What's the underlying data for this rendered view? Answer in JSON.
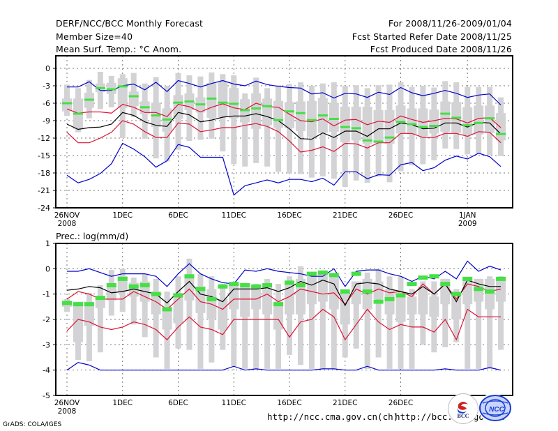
{
  "header": {
    "title": "DERF/NCC/BCC Monthly Forecast",
    "member_size": "Member Size=40",
    "variable_top": "Mean Surf. Temp.: °C Anom.",
    "period": "For 2008/11/26-2009/01/04",
    "started": "Fcst Started Refer Date 2008/11/25",
    "produced": "Fcst Produced Date 2008/11/26"
  },
  "footer": {
    "url_ncc": "http://ncc.cma.gov.cn(ch)",
    "url_bcc": "http://bcc.cma.gov.cn",
    "grads": "GrADS: COLA/IGES",
    "logo_bcc": "BCC",
    "logo_ncc": "NCC"
  },
  "colors": {
    "box": "#d3d3d6",
    "median": "#44e044",
    "mean": "#000000",
    "std": "#dd1133",
    "extreme": "#0000cc"
  },
  "chart_data": [
    {
      "type": "box-line",
      "title": "Mean Surf. Temp.: °C Anom.",
      "ylim": [
        -24,
        0
      ],
      "yticks": [
        0,
        -3,
        -6,
        -9,
        -12,
        -15,
        -18,
        -21,
        -24
      ],
      "ytick_labels": [
        "0",
        "-3",
        "-6",
        "-9",
        "-12",
        "-15",
        "-18",
        "-21",
        "-24"
      ],
      "xticks": [
        {
          "day": 0,
          "label": "26NOV",
          "sub": "2008"
        },
        {
          "day": 5,
          "label": "1DEC",
          "sub": ""
        },
        {
          "day": 10,
          "label": "6DEC",
          "sub": ""
        },
        {
          "day": 15,
          "label": "11DEC",
          "sub": ""
        },
        {
          "day": 20,
          "label": "16DEC",
          "sub": ""
        },
        {
          "day": 25,
          "label": "21DEC",
          "sub": ""
        },
        {
          "day": 30,
          "label": "26DEC",
          "sub": ""
        },
        {
          "day": 36,
          "label": "1JAN",
          "sub": "2009"
        }
      ],
      "grid": true,
      "days": 40,
      "series": {
        "max": [
          -3.2,
          -3.2,
          -2.3,
          -3.8,
          -3.8,
          -3.0,
          -2.7,
          -3.7,
          -2.4,
          -4.0,
          -2.1,
          -2.6,
          -3.2,
          -2.6,
          -2.1,
          -2.7,
          -3.0,
          -2.2,
          -2.8,
          -3.1,
          -3.3,
          -3.4,
          -4.4,
          -4.2,
          -5.1,
          -4.3,
          -4.4,
          -5.0,
          -4.1,
          -4.5,
          -3.3,
          -4.2,
          -4.7,
          -4.3,
          -3.8,
          -4.3,
          -5.0,
          -4.6,
          -4.4,
          -6.3
        ],
        "std_hi": [
          -7.0,
          -7.7,
          -7.5,
          -7.5,
          -7.7,
          -6.2,
          -6.7,
          -7.6,
          -7.6,
          -8.3,
          -6.2,
          -6.6,
          -7.5,
          -6.7,
          -6.1,
          -6.8,
          -7.1,
          -6.0,
          -6.6,
          -6.7,
          -7.9,
          -9.0,
          -9.2,
          -8.7,
          -9.9,
          -8.9,
          -8.8,
          -9.7,
          -9.1,
          -9.3,
          -8.2,
          -8.8,
          -9.3,
          -9.0,
          -8.6,
          -8.7,
          -9.4,
          -8.6,
          -8.5,
          -10.2
        ],
        "mean": [
          -9.6,
          -10.5,
          -10.2,
          -10.1,
          -9.6,
          -7.6,
          -8.1,
          -9.2,
          -9.8,
          -10.0,
          -7.6,
          -8.0,
          -9.2,
          -8.9,
          -8.4,
          -8.2,
          -8.2,
          -7.8,
          -8.3,
          -9.0,
          -10.4,
          -12.1,
          -12.2,
          -11.1,
          -11.9,
          -10.8,
          -10.8,
          -11.7,
          -10.4,
          -10.4,
          -9.4,
          -9.7,
          -10.4,
          -10.3,
          -9.4,
          -9.4,
          -10.1,
          -9.3,
          -9.4,
          -11.3
        ],
        "std_lo": [
          -11.0,
          -12.8,
          -12.8,
          -12.0,
          -11.0,
          -9.0,
          -9.6,
          -10.9,
          -11.9,
          -11.9,
          -9.4,
          -9.6,
          -10.9,
          -10.6,
          -10.2,
          -10.2,
          -9.8,
          -9.5,
          -10.0,
          -10.9,
          -12.5,
          -14.4,
          -14.1,
          -13.5,
          -14.3,
          -12.9,
          -13.0,
          -13.7,
          -12.8,
          -12.8,
          -11.2,
          -11.2,
          -11.9,
          -11.9,
          -11.2,
          -11.2,
          -11.7,
          -10.9,
          -11.0,
          -12.8
        ],
        "min": [
          -18.4,
          -19.7,
          -19.1,
          -18.1,
          -16.4,
          -12.9,
          -13.9,
          -15.2,
          -17.0,
          -15.9,
          -13.1,
          -13.6,
          -15.3,
          -15.3,
          -15.3,
          -21.8,
          -20.2,
          -19.7,
          -19.2,
          -19.7,
          -19.1,
          -19.1,
          -19.5,
          -18.9,
          -20.1,
          -17.8,
          -17.8,
          -19.0,
          -18.3,
          -18.4,
          -16.6,
          -16.2,
          -17.6,
          -17.1,
          -15.8,
          -15.1,
          -15.6,
          -14.6,
          -15.2,
          -16.9
        ],
        "box_top": [
          -2.8,
          -3.4,
          -2.0,
          -0.6,
          -1.3,
          -1.0,
          -0.8,
          -2.6,
          -1.5,
          -3.0,
          -0.8,
          -1.2,
          -1.4,
          -0.7,
          -1.0,
          -1.2,
          -4.3,
          -1.6,
          -3.4,
          -2.9,
          -2.7,
          -2.4,
          -3.0,
          -2.6,
          -2.4,
          -3.0,
          -2.9,
          -3.4,
          -2.9,
          -2.8,
          -2.4,
          -3.2,
          -3.0,
          -3.3,
          -2.2,
          -2.4,
          -3.2,
          -3.2,
          -3.2,
          -5.0
        ],
        "q3": [
          -5.2,
          -5.2,
          -4.2,
          -2.6,
          -2.5,
          -1.7,
          -4.0,
          -5.7,
          -5.9,
          -6.9,
          -4.6,
          -4.3,
          -5.0,
          -2.5,
          -2.4,
          -3.4,
          -5.3,
          -4.3,
          -5.2,
          -5.6,
          -5.8,
          -5.7,
          -5.6,
          -5.1,
          -5.9,
          -6.6,
          -6.6,
          -6.6,
          -7.2,
          -7.2,
          -6.4,
          -6.9,
          -6.9,
          -7.1,
          -5.7,
          -5.8,
          -6.7,
          -6.4,
          -6.4,
          -7.7
        ],
        "median": [
          -6.0,
          -7.8,
          -5.4,
          -3.4,
          -3.6,
          -3.1,
          -4.8,
          -6.7,
          -8.1,
          -8.8,
          -5.9,
          -5.7,
          -6.2,
          -5.2,
          -5.9,
          -6.1,
          -7.2,
          -6.9,
          -6.5,
          -8.9,
          -7.4,
          -7.7,
          -8.9,
          -8.1,
          -8.7,
          -10.1,
          -10.3,
          -12.4,
          -12.6,
          -11.9,
          -9.2,
          -9.6,
          -10.1,
          -9.9,
          -7.8,
          -8.5,
          -9.8,
          -9.4,
          -8.6,
          -11.3
        ],
        "q1": [
          -7.4,
          -10.4,
          -6.8,
          -4.1,
          -4.4,
          -6.8,
          -6.5,
          -7.9,
          -10.1,
          -10.9,
          -8.7,
          -7.2,
          -7.6,
          -8.5,
          -8.4,
          -8.6,
          -9.3,
          -10.4,
          -9.8,
          -10.2,
          -10.3,
          -10.8,
          -11.8,
          -11.1,
          -10.9,
          -12.7,
          -12.4,
          -13.0,
          -12.9,
          -13.0,
          -11.2,
          -11.4,
          -11.7,
          -11.2,
          -10.9,
          -11.1,
          -11.5,
          -11.4,
          -11.1,
          -12.4
        ],
        "box_bot": [
          -8.2,
          -11.0,
          -8.6,
          -7.0,
          -6.7,
          -12.0,
          -8.4,
          -12.1,
          -15.5,
          -16.0,
          -14.0,
          -12.5,
          -12.3,
          -12.1,
          -14.3,
          -16.5,
          -16.9,
          -16.3,
          -16.9,
          -17.8,
          -18.1,
          -18.2,
          -18.8,
          -18.6,
          -19.0,
          -20.4,
          -19.3,
          -19.7,
          -18.6,
          -19.6,
          -17.7,
          -16.7,
          -16.5,
          -15.8,
          -13.8,
          -13.9,
          -14.8,
          -14.6,
          -14.9,
          -15.1
        ]
      }
    },
    {
      "type": "box-line",
      "title": "Prec.: log(mm/d)",
      "ylim": [
        -5,
        1
      ],
      "yticks": [
        1,
        0,
        -1,
        -2,
        -3,
        -4,
        -5
      ],
      "ytick_labels": [
        "1",
        "0",
        "-1",
        "-2",
        "-3",
        "-4",
        "-5"
      ],
      "xticks": [
        {
          "day": 0,
          "label": "26NOV",
          "sub": "2008"
        },
        {
          "day": 5,
          "label": "1DEC",
          "sub": ""
        },
        {
          "day": 10,
          "label": "6DEC",
          "sub": ""
        },
        {
          "day": 15,
          "label": "11DEC",
          "sub": ""
        },
        {
          "day": 20,
          "label": "16DEC",
          "sub": ""
        },
        {
          "day": 25,
          "label": "21DEC",
          "sub": ""
        },
        {
          "day": 30,
          "label": "26DEC",
          "sub": ""
        }
      ],
      "grid": true,
      "days": 40,
      "series": {
        "max": [
          -0.1,
          -0.1,
          0.0,
          -0.15,
          -0.3,
          -0.2,
          -0.2,
          -0.2,
          -0.3,
          -0.7,
          -0.2,
          0.2,
          -0.2,
          -0.4,
          -0.55,
          -0.6,
          -0.05,
          -0.1,
          0.0,
          -0.1,
          -0.15,
          -0.2,
          -0.3,
          -0.3,
          0.0,
          -0.7,
          -0.1,
          -0.05,
          -0.05,
          -0.2,
          -0.3,
          -0.5,
          -0.3,
          -0.4,
          -0.1,
          -0.4,
          0.3,
          -0.1,
          0.1,
          -0.05
        ],
        "std_hi": [
          -1.2,
          -0.9,
          -1.0,
          -1.2,
          -1.2,
          -1.2,
          -0.9,
          -1.1,
          -1.3,
          -1.6,
          -1.2,
          -0.8,
          -1.3,
          -1.4,
          -1.6,
          -1.2,
          -1.2,
          -1.2,
          -1.0,
          -1.3,
          -1.1,
          -0.8,
          -0.9,
          -1.0,
          -0.95,
          -1.4,
          -0.8,
          -1.0,
          -0.8,
          -0.95,
          -0.9,
          -1.1,
          -0.6,
          -1.0,
          -0.6,
          -1.2,
          -0.6,
          -0.7,
          -0.9,
          -0.8
        ],
        "mean": [
          -0.85,
          -0.8,
          -0.7,
          -0.75,
          -0.95,
          -0.9,
          -0.8,
          -0.9,
          -1.0,
          -1.35,
          -0.9,
          -0.5,
          -1.0,
          -1.1,
          -1.3,
          -0.8,
          -0.8,
          -0.8,
          -0.75,
          -0.9,
          -0.75,
          -0.5,
          -0.65,
          -0.45,
          -0.6,
          -1.45,
          -0.6,
          -0.55,
          -0.6,
          -0.8,
          -0.9,
          -1.0,
          -0.7,
          -1.0,
          -0.6,
          -1.3,
          -0.45,
          -0.6,
          -0.7,
          -0.7
        ],
        "std_hi2": [],
        "std_lo": [
          -2.45,
          -2.0,
          -2.1,
          -2.3,
          -2.4,
          -2.3,
          -2.1,
          -2.2,
          -2.4,
          -2.8,
          -2.3,
          -1.9,
          -2.3,
          -2.4,
          -2.6,
          -2.0,
          -2.0,
          -2.0,
          -2.0,
          -2.0,
          -2.7,
          -2.1,
          -2.0,
          -1.6,
          -1.9,
          -2.8,
          -2.2,
          -1.6,
          -2.1,
          -2.4,
          -2.2,
          -2.3,
          -2.3,
          -2.5,
          -2.0,
          -2.8,
          -1.6,
          -1.9,
          -1.9,
          -1.9
        ],
        "min": [
          -4.0,
          -3.7,
          -3.8,
          -4.0,
          -4.0,
          -4.0,
          -4.0,
          -4.0,
          -4.0,
          -4.0,
          -4.0,
          -4.0,
          -4.0,
          -4.0,
          -4.0,
          -3.85,
          -4.0,
          -3.95,
          -4.0,
          -4.0,
          -4.0,
          -4.0,
          -4.0,
          -3.95,
          -3.95,
          -4.0,
          -4.0,
          -3.85,
          -4.0,
          -4.0,
          -4.0,
          -4.0,
          -4.0,
          -4.0,
          -3.95,
          -4.0,
          -4.0,
          -4.0,
          -3.9,
          -4.0
        ],
        "box_top": [
          -1.2,
          -1.4,
          -0.95,
          -0.65,
          -0.05,
          0.0,
          -0.35,
          -0.2,
          -0.4,
          -0.9,
          -0.3,
          0.4,
          -0.2,
          -0.3,
          -0.6,
          -0.9,
          -0.6,
          -0.6,
          -0.4,
          -0.6,
          -0.3,
          0.1,
          -0.3,
          -0.1,
          -0.4,
          -0.8,
          -0.6,
          -0.15,
          0.0,
          -0.3,
          -0.3,
          -0.8,
          -0.5,
          -0.5,
          -0.4,
          -0.8,
          -0.4,
          -0.4,
          -0.3,
          -0.3
        ],
        "q3": [
          -1.3,
          -1.3,
          -1.3,
          -1.1,
          -0.6,
          -0.3,
          -0.55,
          -0.5,
          -0.9,
          -1.5,
          -1.0,
          -0.3,
          -0.7,
          -0.8,
          -1.2,
          -0.6,
          -0.7,
          -0.7,
          -0.7,
          -1.3,
          -0.6,
          -0.4,
          -0.3,
          -0.2,
          -0.3,
          -1.0,
          -0.5,
          -0.4,
          -0.5,
          -0.8,
          -1.0,
          -1.1,
          -0.7,
          -1.1,
          -0.4,
          -0.9,
          -0.4,
          -0.4,
          -0.4,
          -0.4
        ],
        "median": [
          -1.35,
          -1.4,
          -1.4,
          -1.15,
          -0.65,
          -0.4,
          -0.7,
          -0.65,
          -1.0,
          -1.6,
          -1.05,
          -0.3,
          -0.8,
          -1.2,
          -0.7,
          -0.6,
          -0.65,
          -0.7,
          -0.65,
          -1.4,
          -0.55,
          -0.65,
          -0.2,
          -0.15,
          -0.25,
          -0.9,
          -0.2,
          -0.9,
          -1.3,
          -1.2,
          -1.05,
          -0.6,
          -0.35,
          -0.3,
          -0.6,
          -1.0,
          -0.4,
          -0.8,
          -0.9,
          -0.4
        ],
        "q1": [
          -1.5,
          -2.9,
          -2.25,
          -1.55,
          -1.25,
          -0.9,
          -1.1,
          -1.3,
          -1.8,
          -2.4,
          -2.15,
          -1.25,
          -1.75,
          -2.0,
          -2.4,
          -1.6,
          -1.9,
          -1.6,
          -1.8,
          -2.4,
          -1.8,
          -1.8,
          -1.4,
          -1.3,
          -1.6,
          -2.2,
          -1.4,
          -1.6,
          -1.2,
          -1.8,
          -2.1,
          -1.8,
          -1.8,
          -1.9,
          -1.4,
          -2.0,
          -1.4,
          -1.3,
          -1.6,
          -1.3
        ],
        "box_bot": [
          -1.7,
          -3.6,
          -3.65,
          -3.3,
          -1.85,
          -1.7,
          -2.2,
          -2.7,
          -3.5,
          -3.95,
          -3.15,
          -3.2,
          -3.95,
          -3.7,
          -3.2,
          -3.85,
          -3.95,
          -3.95,
          -3.95,
          -3.95,
          -3.4,
          -3.8,
          -3.95,
          -3.95,
          -3.95,
          -3.5,
          -3.15,
          -3.95,
          -3.5,
          -3.95,
          -3.95,
          -3.95,
          -3.0,
          -3.3,
          -3.1,
          -2.9,
          -3.95,
          -3.95,
          -3.95,
          -3.2
        ]
      }
    }
  ]
}
